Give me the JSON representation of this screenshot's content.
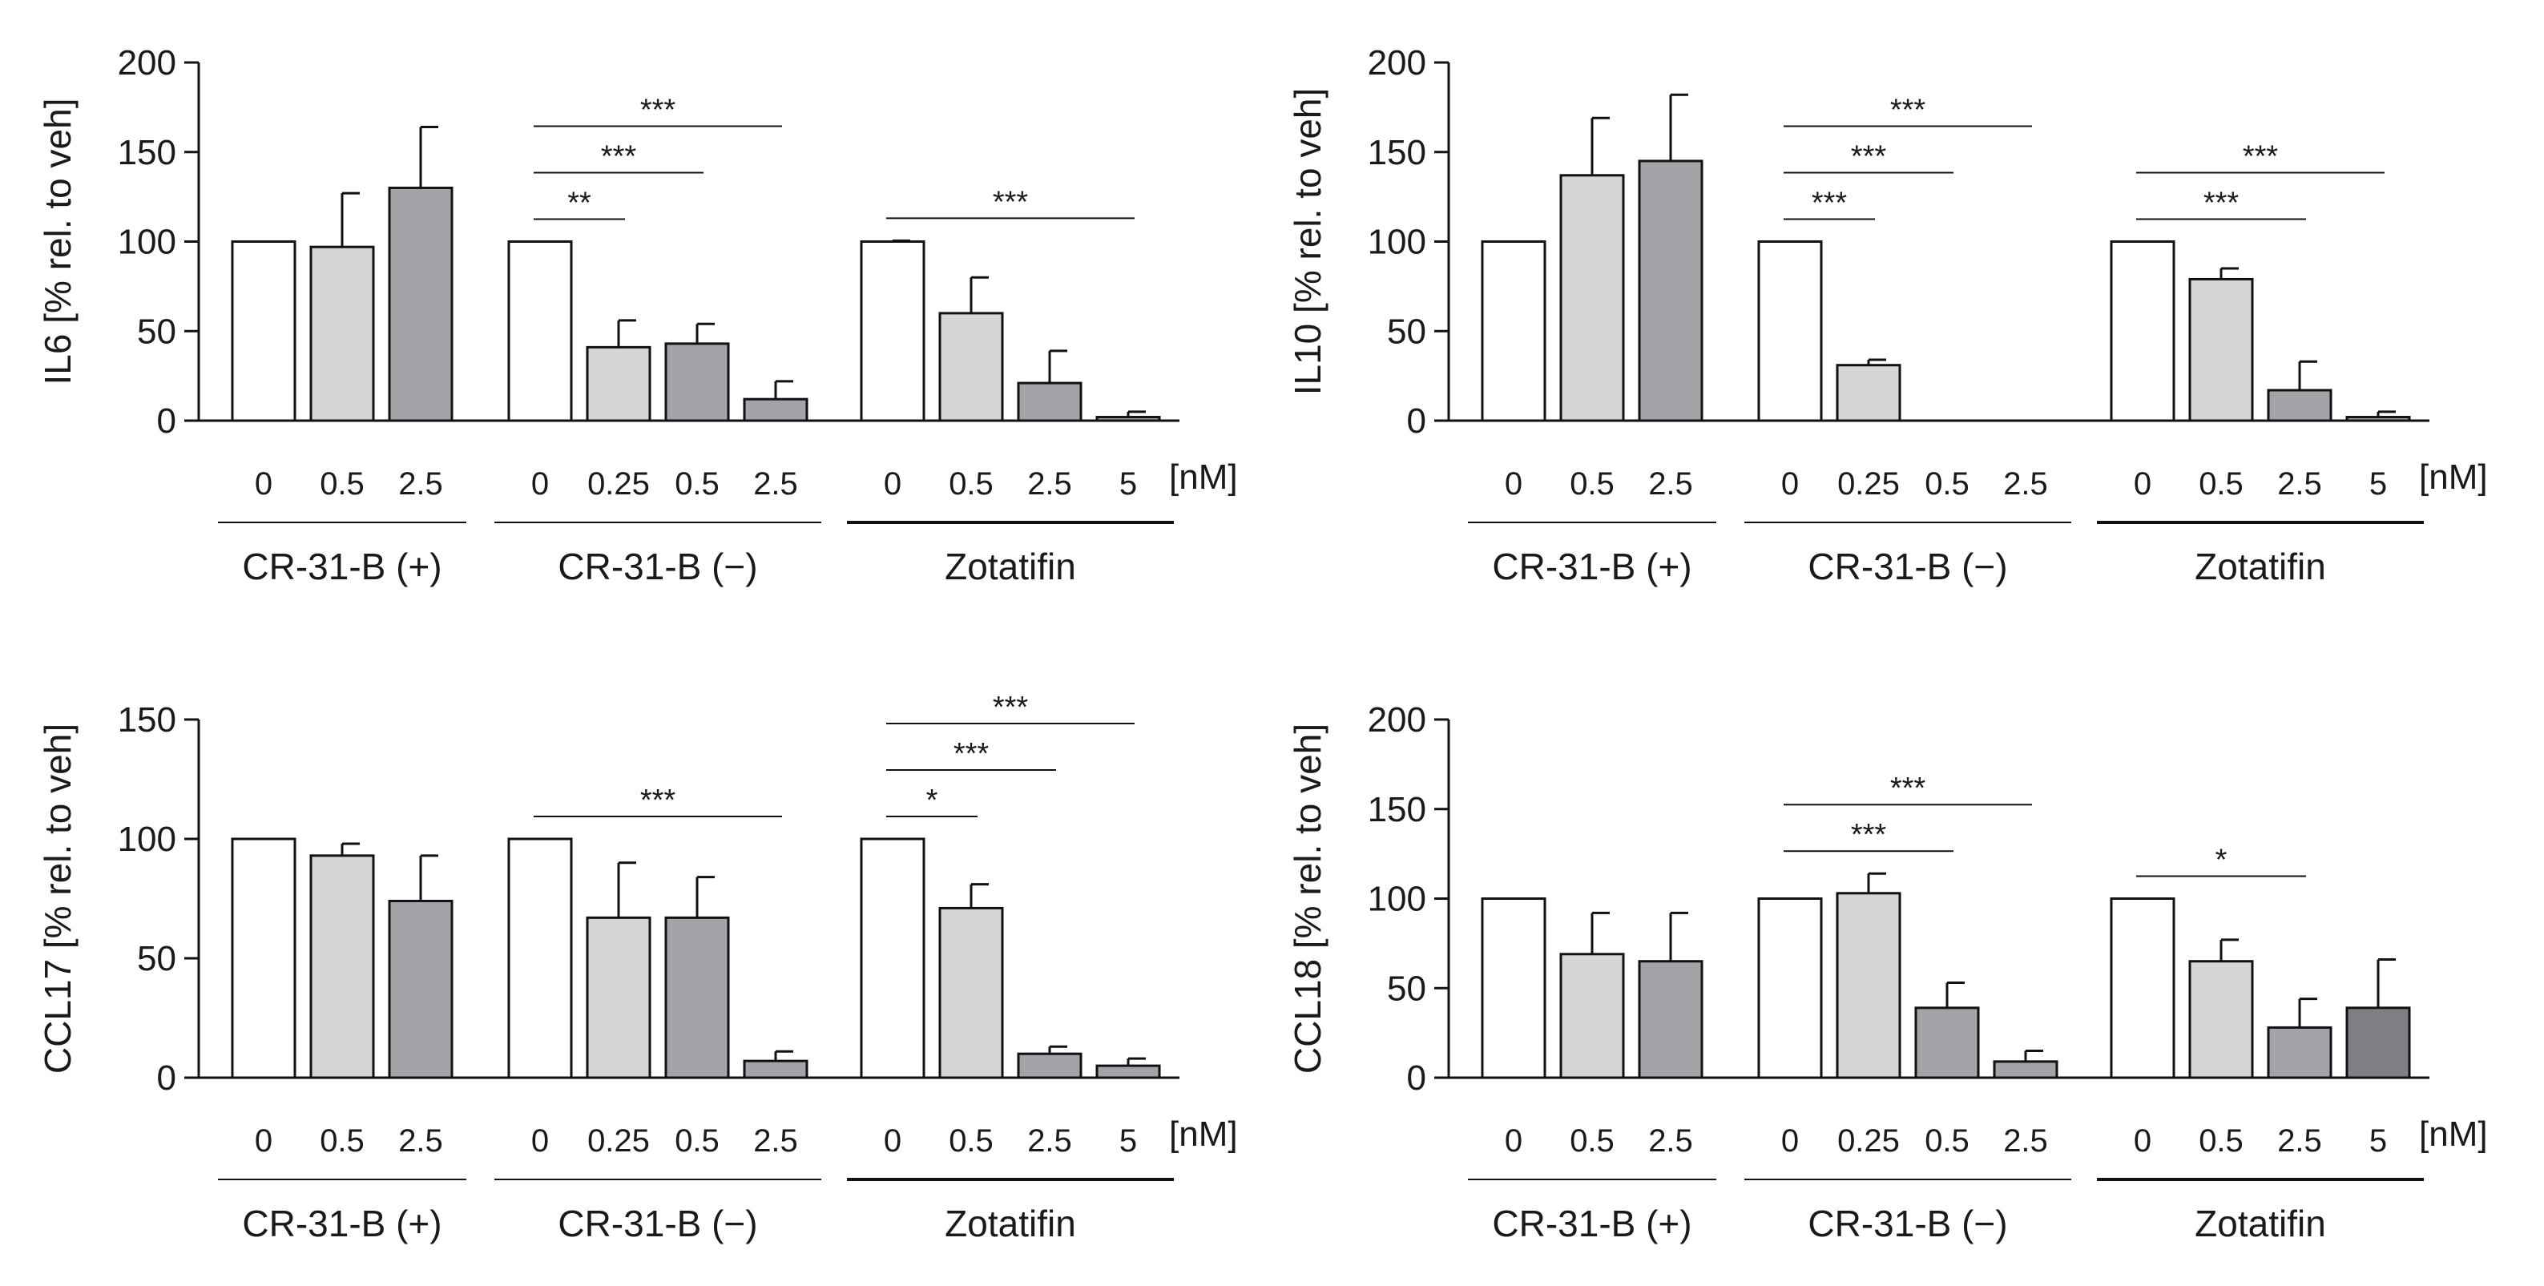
{
  "chart_data": [
    {
      "type": "bar",
      "ylabel": "IL6 [% rel. to veh]",
      "ylim": [
        0,
        200
      ],
      "yticks": [
        0,
        50,
        100,
        150,
        200
      ],
      "unit_label": "[nM]",
      "groups": [
        {
          "name": "CR-31-B (+)",
          "categories": [
            "0",
            "0.5",
            "2.5"
          ],
          "values": [
            100,
            97,
            130
          ],
          "errors": [
            0,
            30,
            34
          ],
          "shades": [
            "white",
            "light",
            "mid"
          ]
        },
        {
          "name": "CR-31-B (−)",
          "categories": [
            "0",
            "0.25",
            "0.5",
            "2.5"
          ],
          "values": [
            100,
            41,
            43,
            12
          ],
          "errors": [
            0,
            15,
            11,
            10
          ],
          "shades": [
            "white",
            "light",
            "mid",
            "mid"
          ]
        },
        {
          "name": "Zotatifin",
          "categories": [
            "0",
            "0.5",
            "2.5",
            "5"
          ],
          "values": [
            100,
            60,
            21,
            2
          ],
          "errors": [
            0.5,
            20,
            18,
            3
          ],
          "shades": [
            "white",
            "light",
            "mid",
            "mid"
          ]
        }
      ],
      "significance": [
        {
          "group": 1,
          "from": 0,
          "to": 1,
          "label": "**",
          "level": 0
        },
        {
          "group": 1,
          "from": 0,
          "to": 2,
          "label": "***",
          "level": 1
        },
        {
          "group": 1,
          "from": 0,
          "to": 3,
          "label": "***",
          "level": 2
        },
        {
          "group": 2,
          "from": 0,
          "to": 3,
          "label": "***",
          "level": 0
        }
      ]
    },
    {
      "type": "bar",
      "ylabel": "IL10 [% rel. to veh]",
      "ylim": [
        0,
        200
      ],
      "yticks": [
        0,
        50,
        100,
        150,
        200
      ],
      "unit_label": "[nM]",
      "groups": [
        {
          "name": "CR-31-B (+)",
          "categories": [
            "0",
            "0.5",
            "2.5"
          ],
          "values": [
            100,
            137,
            145
          ],
          "errors": [
            0,
            32,
            37
          ],
          "shades": [
            "white",
            "light",
            "mid"
          ]
        },
        {
          "name": "CR-31-B (−)",
          "categories": [
            "0",
            "0.25",
            "0.5",
            "2.5"
          ],
          "values": [
            100,
            31,
            0,
            0
          ],
          "errors": [
            0,
            3,
            0,
            0
          ],
          "shades": [
            "white",
            "light",
            "mid",
            "mid"
          ]
        },
        {
          "name": "Zotatifin",
          "categories": [
            "0",
            "0.5",
            "2.5",
            "5"
          ],
          "values": [
            100,
            79,
            17,
            2
          ],
          "errors": [
            0,
            6,
            16,
            3
          ],
          "shades": [
            "white",
            "light",
            "mid",
            "mid"
          ]
        }
      ],
      "significance": [
        {
          "group": 1,
          "from": 0,
          "to": 1,
          "label": "***",
          "level": 0
        },
        {
          "group": 1,
          "from": 0,
          "to": 2,
          "label": "***",
          "level": 1
        },
        {
          "group": 1,
          "from": 0,
          "to": 3,
          "label": "***",
          "level": 2
        },
        {
          "group": 2,
          "from": 0,
          "to": 2,
          "label": "***",
          "level": 0
        },
        {
          "group": 2,
          "from": 0,
          "to": 3,
          "label": "***",
          "level": 1
        }
      ]
    },
    {
      "type": "bar",
      "ylabel": "CCL17 [% rel. to veh]",
      "ylim": [
        0,
        150
      ],
      "yticks": [
        0,
        50,
        100,
        150
      ],
      "unit_label": "[nM]",
      "groups": [
        {
          "name": "CR-31-B (+)",
          "categories": [
            "0",
            "0.5",
            "2.5"
          ],
          "values": [
            100,
            93,
            74
          ],
          "errors": [
            0,
            5,
            19
          ],
          "shades": [
            "white",
            "light",
            "mid"
          ]
        },
        {
          "name": "CR-31-B (−)",
          "categories": [
            "0",
            "0.25",
            "0.5",
            "2.5"
          ],
          "values": [
            100,
            67,
            67,
            7
          ],
          "errors": [
            0,
            23,
            17,
            4
          ],
          "shades": [
            "white",
            "light",
            "mid",
            "mid"
          ]
        },
        {
          "name": "Zotatifin",
          "categories": [
            "0",
            "0.5",
            "2.5",
            "5"
          ],
          "values": [
            100,
            71,
            10,
            5
          ],
          "errors": [
            0,
            10,
            3,
            3
          ],
          "shades": [
            "white",
            "light",
            "mid",
            "mid"
          ]
        }
      ],
      "significance": [
        {
          "group": 1,
          "from": 0,
          "to": 3,
          "label": "***",
          "level": 0
        },
        {
          "group": 2,
          "from": 0,
          "to": 1,
          "label": "*",
          "level": 0
        },
        {
          "group": 2,
          "from": 0,
          "to": 2,
          "label": "***",
          "level": 1
        },
        {
          "group": 2,
          "from": 0,
          "to": 3,
          "label": "***",
          "level": 2
        }
      ]
    },
    {
      "type": "bar",
      "ylabel": "CCL18 [% rel. to veh]",
      "ylim": [
        0,
        200
      ],
      "yticks": [
        0,
        50,
        100,
        150,
        200
      ],
      "unit_label": "[nM]",
      "groups": [
        {
          "name": "CR-31-B (+)",
          "categories": [
            "0",
            "0.5",
            "2.5"
          ],
          "values": [
            100,
            69,
            65
          ],
          "errors": [
            0,
            23,
            27
          ],
          "shades": [
            "white",
            "light",
            "mid"
          ]
        },
        {
          "name": "CR-31-B (−)",
          "categories": [
            "0",
            "0.25",
            "0.5",
            "2.5"
          ],
          "values": [
            100,
            103,
            39,
            9
          ],
          "errors": [
            0,
            11,
            14,
            6
          ],
          "shades": [
            "white",
            "light",
            "mid",
            "mid"
          ]
        },
        {
          "name": "Zotatifin",
          "categories": [
            "0",
            "0.5",
            "2.5",
            "5"
          ],
          "values": [
            100,
            65,
            28,
            39
          ],
          "errors": [
            0,
            12,
            16,
            27
          ],
          "shades": [
            "white",
            "light",
            "mid",
            "dark"
          ]
        }
      ],
      "significance": [
        {
          "group": 1,
          "from": 0,
          "to": 2,
          "label": "***",
          "level": 0
        },
        {
          "group": 1,
          "from": 0,
          "to": 3,
          "label": "***",
          "level": 1
        },
        {
          "group": 2,
          "from": 0,
          "to": 2,
          "label": "*",
          "level": 0
        }
      ]
    }
  ],
  "colors": {
    "white": "#ffffff",
    "light": "#d6d6d6",
    "mid": "#a3a4a8",
    "dark": "#7e7f82",
    "stroke": "#111111"
  }
}
